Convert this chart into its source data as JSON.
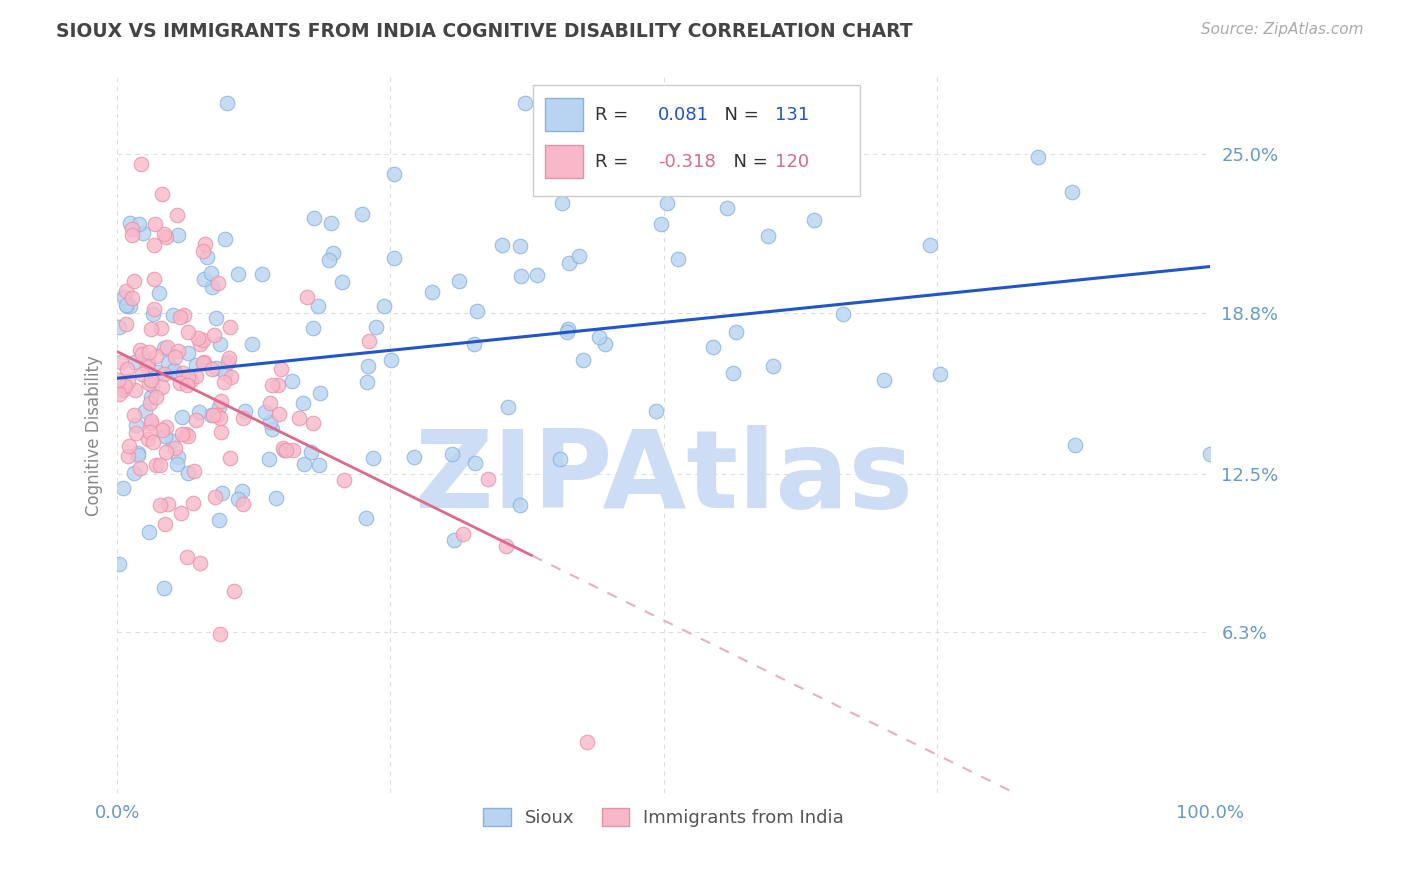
{
  "title": "SIOUX VS IMMIGRANTS FROM INDIA COGNITIVE DISABILITY CORRELATION CHART",
  "source_text": "Source: ZipAtlas.com",
  "ylabel": "Cognitive Disability",
  "y_ticks": [
    0.063,
    0.125,
    0.188,
    0.25
  ],
  "y_tick_labels": [
    "6.3%",
    "12.5%",
    "18.8%",
    "25.0%"
  ],
  "xlim": [
    0.0,
    1.0
  ],
  "ylim": [
    0.0,
    0.28
  ],
  "legend_r1_prefix": "R = ",
  "legend_r1_val": "0.081",
  "legend_n1_prefix": "N = ",
  "legend_n1_val": "131",
  "legend_r2_prefix": "R = ",
  "legend_r2_val": "-0.318",
  "legend_n2_prefix": "N = ",
  "legend_n2_val": "120",
  "series1_color": "#b8d4f0",
  "series1_edge": "#88b0e0",
  "series2_color": "#f8b8c8",
  "series2_edge": "#e890a8",
  "line1_color": "#2255cc",
  "line2_color": "#e06888",
  "line2_dash_color": "#e8b0c0",
  "background_color": "#ffffff",
  "grid_color": "#dddddd",
  "watermark": "ZIPAtlas",
  "watermark_color": "#ccddf5",
  "title_color": "#444444",
  "axis_label_color": "#6699cc",
  "r_color_blue": "#2255cc",
  "r_color_pink": "#e06888",
  "n_color": "#333333",
  "seed1": 42,
  "seed2": 123,
  "n1": 131,
  "n2": 120,
  "r1": 0.081,
  "r2": -0.318
}
